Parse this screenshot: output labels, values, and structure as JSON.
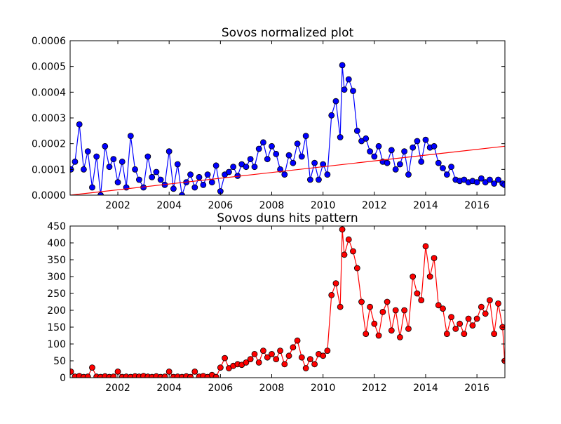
{
  "chart_data": [
    {
      "type": "line",
      "title": "Sovos normalized plot",
      "xlim": [
        2000.14,
        2017.09
      ],
      "xticks": [
        2002,
        2004,
        2006,
        2008,
        2010,
        2012,
        2014,
        2016
      ],
      "ylim": [
        0,
        0.0006
      ],
      "yticks": [
        {
          "value": 0,
          "label": "0.0000"
        },
        {
          "value": 0.0001,
          "label": "0.0001"
        },
        {
          "value": 0.0002,
          "label": "0.0002"
        },
        {
          "value": 0.0003,
          "label": "0.0003"
        },
        {
          "value": 0.0004,
          "label": "0.0004"
        },
        {
          "value": 0.0005,
          "label": "0.0005"
        },
        {
          "value": 0.0006,
          "label": "0.0006"
        }
      ],
      "x": [
        2000.17,
        2000.33,
        2000.5,
        2000.67,
        2000.83,
        2001.0,
        2001.17,
        2001.33,
        2001.5,
        2001.67,
        2001.83,
        2002.0,
        2002.17,
        2002.33,
        2002.5,
        2002.67,
        2002.83,
        2003.0,
        2003.17,
        2003.33,
        2003.5,
        2003.67,
        2003.83,
        2004.0,
        2004.17,
        2004.33,
        2004.5,
        2004.67,
        2004.83,
        2005.0,
        2005.17,
        2005.33,
        2005.5,
        2005.67,
        2005.83,
        2006.0,
        2006.17,
        2006.33,
        2006.5,
        2006.67,
        2006.83,
        2007.0,
        2007.17,
        2007.33,
        2007.5,
        2007.67,
        2007.83,
        2008.0,
        2008.17,
        2008.33,
        2008.5,
        2008.67,
        2008.83,
        2009.0,
        2009.17,
        2009.33,
        2009.5,
        2009.67,
        2009.83,
        2010.0,
        2010.17,
        2010.33,
        2010.5,
        2010.67,
        2010.75,
        2010.83,
        2011.0,
        2011.17,
        2011.33,
        2011.5,
        2011.67,
        2011.83,
        2012.0,
        2012.17,
        2012.33,
        2012.5,
        2012.67,
        2012.83,
        2013.0,
        2013.17,
        2013.33,
        2013.5,
        2013.67,
        2013.83,
        2014.0,
        2014.17,
        2014.33,
        2014.5,
        2014.67,
        2014.83,
        2015.0,
        2015.17,
        2015.33,
        2015.5,
        2015.67,
        2015.83,
        2016.0,
        2016.17,
        2016.33,
        2016.5,
        2016.67,
        2016.83,
        2017.0,
        2017.08
      ],
      "series": [
        {
          "color": "#0000ff",
          "values": [
            0.0001,
            0.00013,
            0.000275,
            0.0001,
            0.00017,
            3e-05,
            0.00015,
            0,
            0.00019,
            0.00011,
            0.00014,
            5e-05,
            0.00013,
            3e-05,
            0.00023,
            0.0001,
            6e-05,
            3e-05,
            0.00015,
            7e-05,
            9e-05,
            6e-05,
            4e-05,
            0.00017,
            2.5e-05,
            0.00012,
            0,
            5e-05,
            8e-05,
            3e-05,
            7e-05,
            4e-05,
            8e-05,
            5e-05,
            0.000115,
            1.5e-05,
            8e-05,
            9e-05,
            0.00011,
            7.5e-05,
            0.00012,
            0.00011,
            0.00014,
            0.00011,
            0.00018,
            0.000205,
            0.00014,
            0.00019,
            0.00016,
            0.0001,
            8e-05,
            0.000155,
            0.000125,
            0.0002,
            0.00015,
            0.00023,
            6e-05,
            0.000125,
            6e-05,
            0.00012,
            8e-05,
            0.00031,
            0.000365,
            0.000225,
            0.000505,
            0.00041,
            0.00045,
            0.000405,
            0.00025,
            0.00021,
            0.00022,
            0.00017,
            0.00015,
            0.00019,
            0.00013,
            0.000125,
            0.000175,
            0.0001,
            0.00012,
            0.00017,
            8e-05,
            0.000185,
            0.00021,
            0.00013,
            0.000215,
            0.000185,
            0.00019,
            0.000125,
            0.000105,
            8e-05,
            0.00011,
            6e-05,
            5.5e-05,
            6e-05,
            5e-05,
            5.5e-05,
            5e-05,
            6.5e-05,
            5e-05,
            6e-05,
            4.5e-05,
            6e-05,
            4.5e-05,
            4e-05
          ]
        }
      ],
      "fit": {
        "color": "#ff0000",
        "x": [
          2000.14,
          2017.09
        ],
        "values": [
          0,
          0.00019
        ]
      }
    },
    {
      "type": "line",
      "title": "Sovos duns hits pattern",
      "xlim": [
        2000.14,
        2017.09
      ],
      "xticks": [
        2002,
        2004,
        2006,
        2008,
        2010,
        2012,
        2014,
        2016
      ],
      "ylim": [
        0,
        450
      ],
      "yticks": [
        0,
        50,
        100,
        150,
        200,
        250,
        300,
        350,
        400,
        450
      ],
      "x": [
        2000.17,
        2000.33,
        2000.5,
        2000.67,
        2000.83,
        2001.0,
        2001.17,
        2001.33,
        2001.5,
        2001.67,
        2001.83,
        2002.0,
        2002.17,
        2002.33,
        2002.5,
        2002.67,
        2002.83,
        2003.0,
        2003.17,
        2003.33,
        2003.5,
        2003.67,
        2003.83,
        2004.0,
        2004.17,
        2004.33,
        2004.5,
        2004.67,
        2004.83,
        2005.0,
        2005.17,
        2005.33,
        2005.5,
        2005.67,
        2005.83,
        2006.0,
        2006.17,
        2006.33,
        2006.5,
        2006.67,
        2006.83,
        2007.0,
        2007.17,
        2007.33,
        2007.5,
        2007.67,
        2007.83,
        2008.0,
        2008.17,
        2008.33,
        2008.5,
        2008.67,
        2008.83,
        2009.0,
        2009.17,
        2009.33,
        2009.5,
        2009.67,
        2009.83,
        2010.0,
        2010.17,
        2010.33,
        2010.5,
        2010.67,
        2010.75,
        2010.83,
        2011.0,
        2011.17,
        2011.33,
        2011.5,
        2011.67,
        2011.83,
        2012.0,
        2012.17,
        2012.33,
        2012.5,
        2012.67,
        2012.83,
        2013.0,
        2013.17,
        2013.33,
        2013.5,
        2013.67,
        2013.83,
        2014.0,
        2014.17,
        2014.33,
        2014.5,
        2014.67,
        2014.83,
        2015.0,
        2015.17,
        2015.33,
        2015.5,
        2015.67,
        2015.83,
        2016.0,
        2016.17,
        2016.33,
        2016.5,
        2016.67,
        2016.83,
        2017.0,
        2017.08
      ],
      "series": [
        {
          "color": "#ff0000",
          "values": [
            18,
            3,
            5,
            2,
            3,
            30,
            3,
            2,
            4,
            2,
            3,
            18,
            2,
            3,
            2,
            4,
            3,
            5,
            3,
            2,
            4,
            2,
            3,
            18,
            2,
            3,
            2,
            4,
            2,
            18,
            3,
            5,
            2,
            8,
            2,
            30,
            58,
            28,
            35,
            40,
            38,
            45,
            55,
            70,
            45,
            80,
            60,
            70,
            55,
            80,
            40,
            65,
            90,
            110,
            60,
            28,
            55,
            40,
            70,
            65,
            80,
            245,
            280,
            210,
            440,
            365,
            410,
            375,
            325,
            225,
            130,
            210,
            160,
            125,
            195,
            225,
            140,
            200,
            120,
            200,
            145,
            300,
            250,
            230,
            390,
            300,
            355,
            215,
            205,
            130,
            180,
            145,
            160,
            130,
            175,
            155,
            175,
            210,
            190,
            230,
            130,
            220,
            150,
            50
          ]
        }
      ]
    }
  ]
}
